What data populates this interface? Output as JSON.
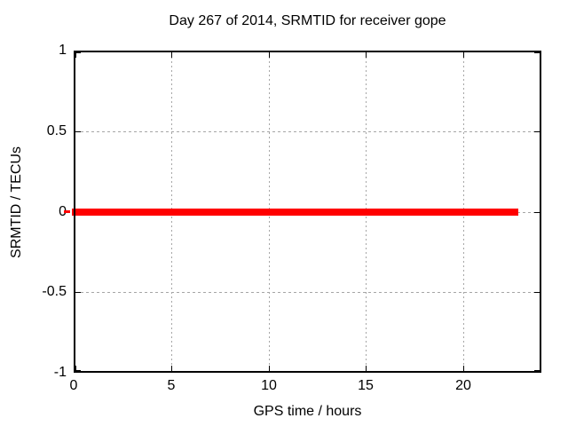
{
  "chart_data": {
    "type": "line",
    "title": "Day 267 of 2014, SRMTID for receiver gope",
    "xlabel": "GPS time / hours",
    "ylabel": "SRMTID / TECUs",
    "xlim": [
      0,
      24
    ],
    "ylim": [
      -1,
      1
    ],
    "x_ticks": [
      0,
      5,
      10,
      15,
      20
    ],
    "x_tick_labels": [
      "0",
      "5",
      "10",
      "15",
      "20"
    ],
    "y_ticks": [
      1,
      0.5,
      0,
      -0.5,
      -1
    ],
    "y_tick_labels": [
      "1",
      "0.5",
      "0",
      "-0.5",
      "-1"
    ],
    "grid": true,
    "legend": "none",
    "series": [
      {
        "name": "SRMTID",
        "color": "#ff0000",
        "style": "thick solid horizontal line",
        "points": [
          [
            0,
            0
          ],
          [
            22.8,
            0
          ]
        ]
      }
    ]
  },
  "colors": {
    "line": "#ff0000",
    "grid": "#a6a6a6",
    "axis": "#000000",
    "text": "#000000",
    "background": "#ffffff"
  }
}
